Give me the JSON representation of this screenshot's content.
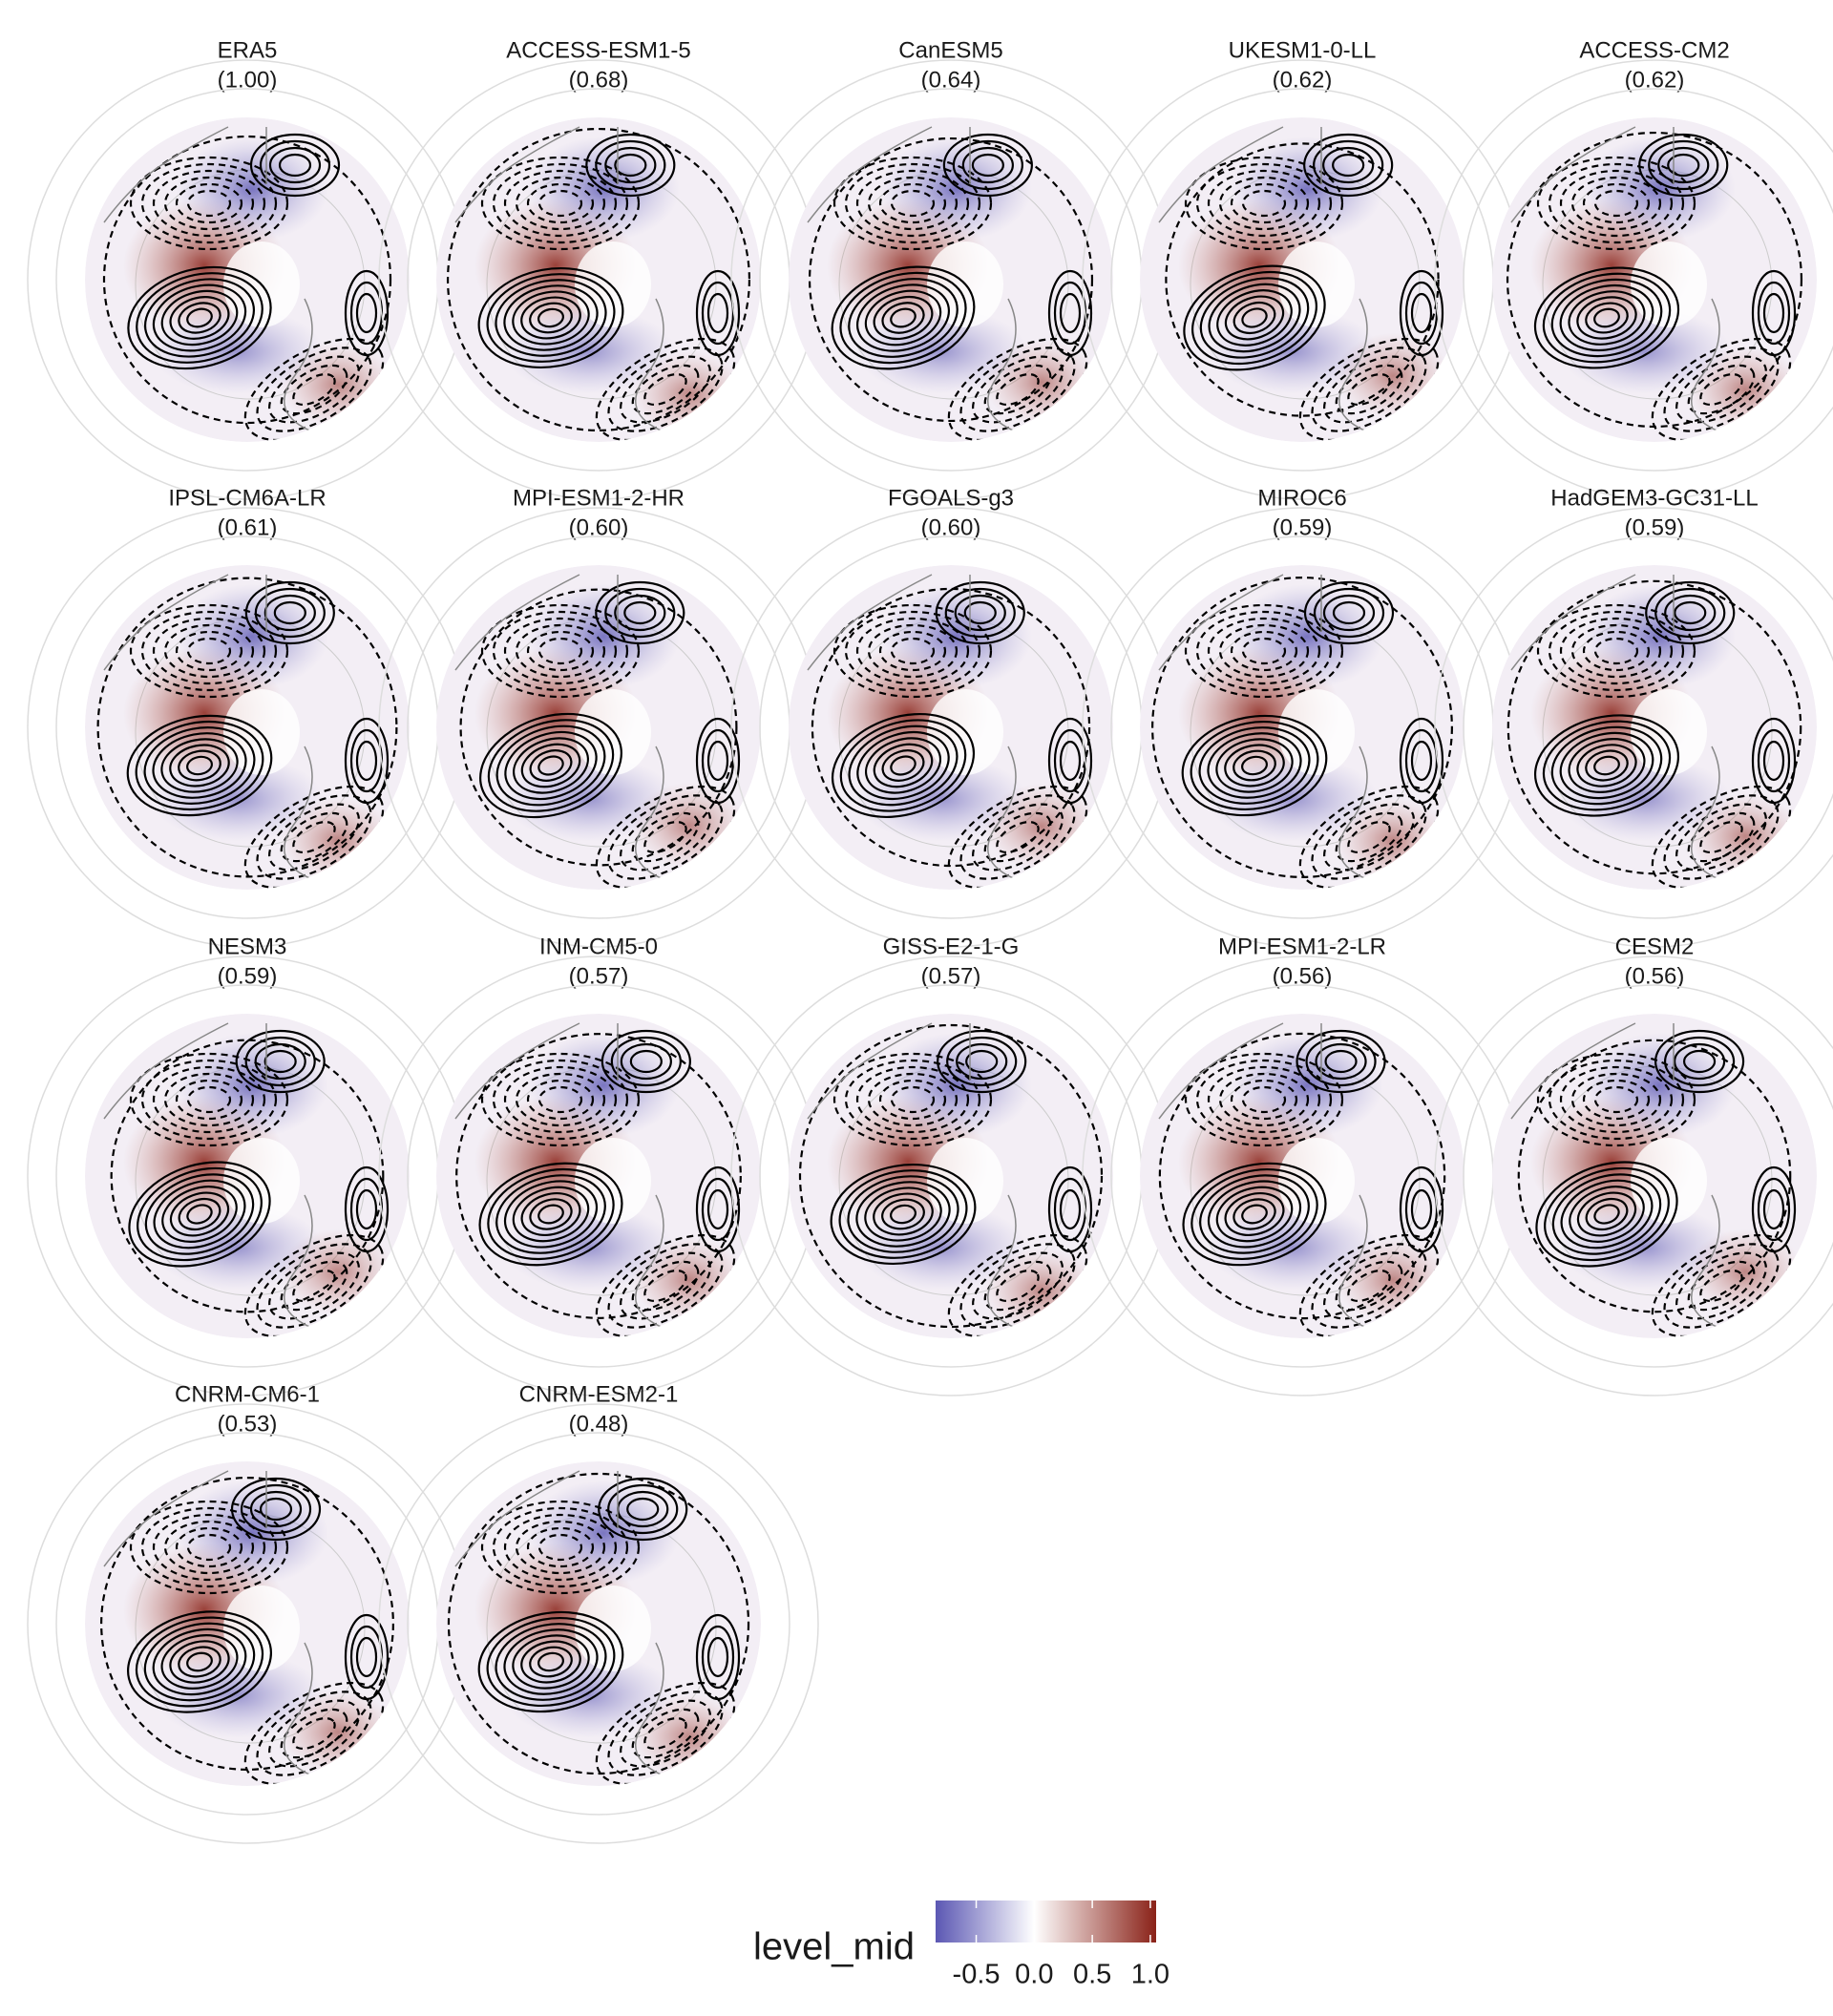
{
  "panels": [
    {
      "name": "ERA5",
      "score": "(1.00)"
    },
    {
      "name": "ACCESS-ESM1-5",
      "score": "(0.68)"
    },
    {
      "name": "CanESM5",
      "score": "(0.64)"
    },
    {
      "name": "UKESM1-0-LL",
      "score": "(0.62)"
    },
    {
      "name": "ACCESS-CM2",
      "score": "(0.62)"
    },
    {
      "name": "IPSL-CM6A-LR",
      "score": "(0.61)"
    },
    {
      "name": "MPI-ESM1-2-HR",
      "score": "(0.60)"
    },
    {
      "name": "FGOALS-g3",
      "score": "(0.60)"
    },
    {
      "name": "MIROC6",
      "score": "(0.59)"
    },
    {
      "name": "HadGEM3-GC31-LL",
      "score": "(0.59)"
    },
    {
      "name": "NESM3",
      "score": "(0.59)"
    },
    {
      "name": "INM-CM5-0",
      "score": "(0.57)"
    },
    {
      "name": "GISS-E2-1-G",
      "score": "(0.57)"
    },
    {
      "name": "MPI-ESM1-2-LR",
      "score": "(0.56)"
    },
    {
      "name": "CESM2",
      "score": "(0.56)"
    },
    {
      "name": "CNRM-CM6-1",
      "score": "(0.53)"
    },
    {
      "name": "CNRM-ESM2-1",
      "score": "(0.48)"
    }
  ],
  "legend": {
    "title": "level_mid",
    "lim": [
      -0.85,
      1.05
    ],
    "ticks": [
      -0.5,
      {
        "value": 0,
        "label": "0.0"
      },
      0.5,
      {
        "value": 1,
        "label": "1.0"
      }
    ],
    "colors": [
      "#5b57b3",
      "#ffffff",
      "#8a2218"
    ]
  }
}
